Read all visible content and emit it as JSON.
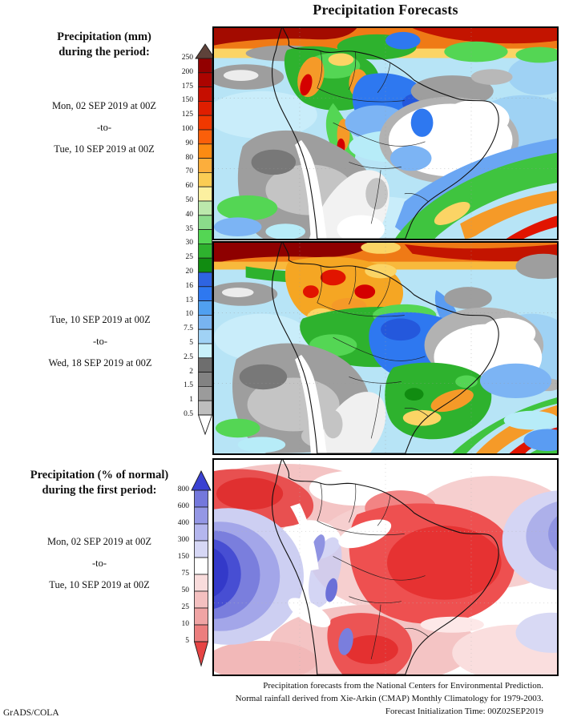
{
  "title": "Precipitation Forecasts",
  "watermark": "GrADS/COLA",
  "left_column": {
    "block1": {
      "heading_line1": "Precipitation (mm)",
      "heading_line2": "during the period:",
      "date_from": "Mon, 02 SEP 2019 at 00Z",
      "separator": "-to-",
      "date_to": "Tue, 10 SEP 2019 at 00Z"
    },
    "block2": {
      "date_from": "Tue, 10 SEP 2019 at 00Z",
      "separator": "-to-",
      "date_to": "Wed, 18 SEP 2019 at 00Z"
    },
    "block3": {
      "heading_line1": "Precipitation (% of normal)",
      "heading_line2": "during the first period:",
      "date_from": "Mon, 02 SEP 2019 at 00Z",
      "separator": "-to-",
      "date_to": "Tue, 10 SEP 2019 at 00Z"
    }
  },
  "colorbars": {
    "mm": {
      "unit": "mm",
      "labels": [
        "250",
        "200",
        "175",
        "150",
        "125",
        "100",
        "90",
        "80",
        "70",
        "60",
        "50",
        "40",
        "35",
        "30",
        "25",
        "20",
        "16",
        "13",
        "10",
        "7.5",
        "5",
        "2.5",
        "2",
        "1.5",
        "1",
        "0.5"
      ],
      "colors": [
        "#5e423a",
        "#920000",
        "#ab0400",
        "#c60e00",
        "#df1e00",
        "#f03800",
        "#fa5f0a",
        "#fc8b12",
        "#fcae3c",
        "#fbcc54",
        "#fcf0a0",
        "#bce8ac",
        "#8bdc8b",
        "#54d654",
        "#2eb22e",
        "#118c11",
        "#2e64e1",
        "#2e78f0",
        "#50a0f0",
        "#78b4f0",
        "#a0d2f5",
        "#c8f0fa",
        "#6e6e6e",
        "#828282",
        "#9b9b9b",
        "#bebebe",
        "#ffffff"
      ]
    },
    "percent": {
      "unit": "% of normal",
      "labels": [
        "800",
        "600",
        "400",
        "300",
        "150",
        "75",
        "50",
        "25",
        "10",
        "5"
      ],
      "colors": [
        "#3a41d2",
        "#7478dc",
        "#9497e5",
        "#b4b6ee",
        "#d6d7f5",
        "#ffffff",
        "#f9dcdc",
        "#f4c0c0",
        "#f0a4a4",
        "#ec7e7e",
        "#e64444"
      ]
    }
  },
  "footer": {
    "line1": "Precipitation forecasts from the National Centers for Environmental Prediction.",
    "line2": "Normal rainfall derived from Xie-Arkin (CMAP) Monthly Climatology for 1979-2003.",
    "line3": "Forecast Initialization Time: 00Z02SEP2019"
  }
}
